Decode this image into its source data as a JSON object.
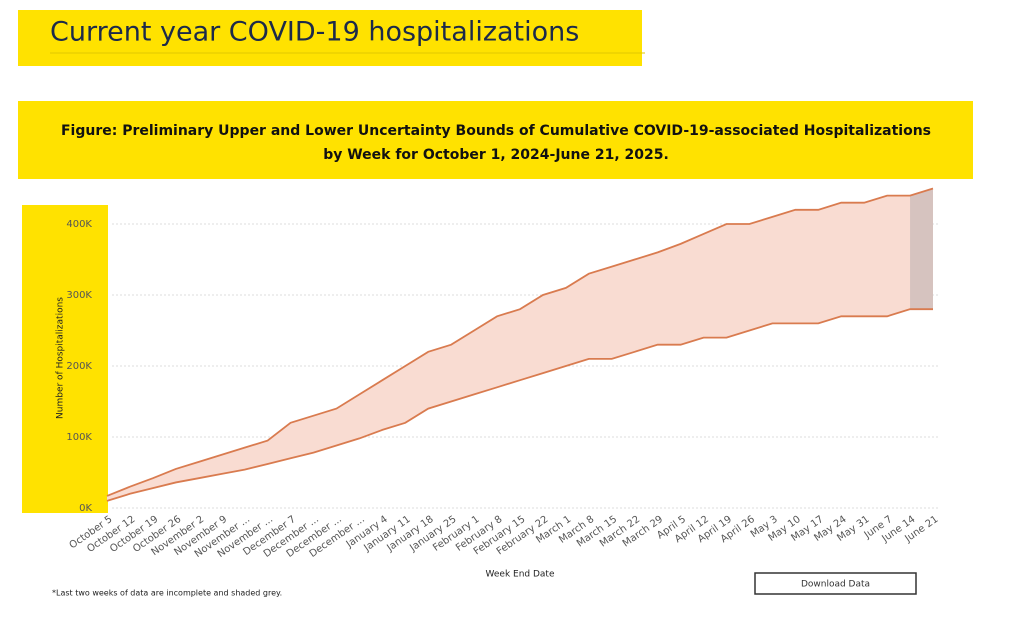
{
  "header": {
    "title": "Current year COVID-19 hospitalizations"
  },
  "chart_data": {
    "type": "band",
    "title_lines": [
      "Figure: Preliminary Upper and Lower Uncertainty Bounds of Cumulative COVID-19-associated Hospitalizations",
      "by Week for October 1, 2024-June 21, 2025."
    ],
    "x_label": "Week End Date",
    "y_label": "Number of Hospitalizations",
    "categories": [
      "October 5",
      "October 12",
      "October 19",
      "October 26",
      "November 2",
      "November 9",
      "November ...",
      "November ...",
      "December 7",
      "December ...",
      "December ...",
      "December ...",
      "January 4",
      "January 11",
      "January 18",
      "January 25",
      "February 1",
      "February 8",
      "February 15",
      "February 22",
      "March 1",
      "March 8",
      "March 15",
      "March 22",
      "March 29",
      "April 5",
      "April 12",
      "April 19",
      "April 26",
      "May 3",
      "May 10",
      "May 17",
      "May 24",
      "May 31",
      "June 7",
      "June 14",
      "June 21"
    ],
    "series": [
      {
        "color": "#d97b4f",
        "values": [
          17000,
          30000,
          42000,
          55000,
          65000,
          75000,
          85000,
          95000,
          120000,
          130000,
          140000,
          160000,
          180000,
          200000,
          220000,
          230000,
          250000,
          270000,
          280000,
          300000,
          310000,
          330000,
          340000,
          350000,
          360000,
          372000,
          386000,
          400000,
          400000,
          410000,
          420000,
          420000,
          430000,
          430000,
          440000,
          440000,
          450000
        ]
      },
      {
        "color": "#d97b4f",
        "values": [
          10000,
          20000,
          28000,
          36000,
          42000,
          48000,
          54000,
          62000,
          70000,
          78000,
          88000,
          98000,
          110000,
          120000,
          140000,
          150000,
          160000,
          170000,
          180000,
          190000,
          200000,
          210000,
          210000,
          220000,
          230000,
          230000,
          240000,
          240000,
          250000,
          260000,
          260000,
          260000,
          270000,
          270000,
          270000,
          280000,
          280000
        ]
      }
    ],
    "band_color": "#f9dcd2",
    "incomplete_color": "#d6c3bf",
    "ylim": [
      0,
      450000
    ],
    "yticks": [
      {
        "value": 0,
        "label": "0K"
      },
      {
        "value": 100000,
        "label": "100K"
      },
      {
        "value": 200000,
        "label": "200K"
      },
      {
        "value": 300000,
        "label": "300K"
      },
      {
        "value": 400000,
        "label": "400K"
      }
    ],
    "grid": true,
    "footnote": "*Last two weeks of data are incomplete and shaded grey.",
    "button": "Download Data"
  }
}
